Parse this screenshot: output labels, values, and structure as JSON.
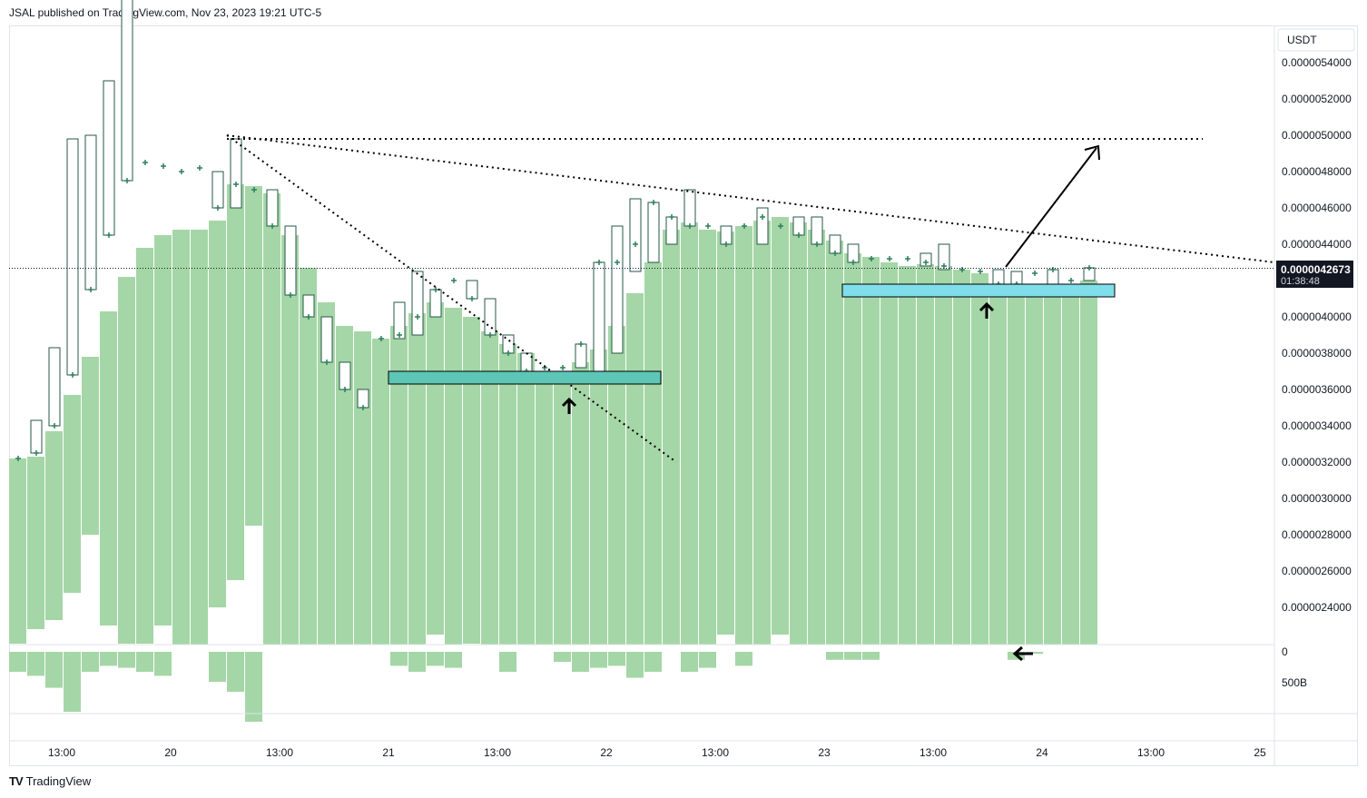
{
  "header": {
    "text": "JSAL published on TradingView.com, Nov 23, 2023 19:21 UTC-5"
  },
  "footer": {
    "brand": "TradingView",
    "logo": "TV"
  },
  "price_axis": {
    "currency": "USDT",
    "ticks": [
      "0.0000054000",
      "0.0000052000",
      "0.0000050000",
      "0.0000048000",
      "0.0000046000",
      "0.0000044000",
      "0.0000040000",
      "0.0000038000",
      "0.0000036000",
      "0.0000034000",
      "0.0000032000",
      "0.0000030000",
      "0.0000028000",
      "0.0000026000",
      "0.0000024000"
    ],
    "last_price": "0.0000042673",
    "countdown": "01:38:48"
  },
  "volume_axis": {
    "ticks": [
      "0",
      "500B"
    ]
  },
  "time_axis": {
    "labels": [
      "13:00",
      "20",
      "13:00",
      "21",
      "13:00",
      "22",
      "13:00",
      "23",
      "13:00",
      "24",
      "13:00",
      "25"
    ]
  },
  "chart_data": {
    "type": "bar",
    "description_series": [
      {
        "name": "",
        "kind": "candlestick-hollow",
        "values": [
          [
            3.22,
            3.22,
            3.22,
            3.22
          ],
          [
            3.22,
            3.25,
            3.22,
            3.25
          ],
          [
            3.25,
            3.43,
            3.25,
            3.4
          ],
          [
            3.4,
            3.83,
            3.4,
            3.68
          ],
          [
            3.68,
            4.98,
            3.68,
            4.98
          ],
          [
            4.35,
            4.35,
            4.35,
            4.35
          ],
          [
            4.15,
            5.0,
            4.15,
            4.15
          ],
          [
            4.45,
            5.3,
            4.45,
            4.75
          ],
          [
            4.75,
            4.75,
            4.75,
            4.75
          ],
          [
            4.85,
            4.85,
            4.85,
            4.85
          ],
          [
            4.8,
            4.8,
            4.8,
            4.8
          ],
          [
            4.82,
            4.82,
            4.82,
            4.82
          ],
          [
            4.82,
            5.12,
            4.82,
            4.92
          ],
          [
            4.92,
            6.0,
            4.92,
            5.0
          ],
          [
            4.8,
            4.8,
            4.8,
            4.8
          ],
          [
            4.7,
            4.7,
            4.7,
            4.7
          ],
          [
            4.5,
            4.5,
            4.5,
            4.5
          ],
          [
            4.12,
            4.12,
            4.12,
            4.12
          ],
          [
            4.0,
            4.0,
            4.0,
            4.0
          ],
          [
            3.75,
            3.75,
            3.75,
            3.75
          ],
          [
            3.6,
            3.6,
            3.6,
            3.6
          ],
          [
            3.5,
            3.5,
            3.5,
            3.5
          ],
          [
            3.4,
            3.4,
            3.4,
            3.4
          ],
          [
            3.25,
            3.25,
            3.25,
            3.25
          ],
          [
            3.1,
            3.1,
            3.1,
            3.1
          ],
          [
            3.05,
            3.05,
            3.05,
            3.05
          ],
          [
            3.0,
            3.0,
            3.0,
            3.0
          ],
          [
            2.95,
            2.95,
            2.95,
            2.95
          ],
          [
            2.9,
            2.9,
            2.9,
            2.9
          ],
          [
            3.8,
            3.8,
            3.8,
            3.8
          ],
          [
            3.9,
            3.9,
            3.9,
            3.9
          ],
          [
            3.8,
            3.8,
            3.8,
            3.8
          ]
        ],
        "note": ""
      }
    ],
    "candles": {
      "open": [
        3.2,
        3.25,
        3.4,
        3.68,
        4.15,
        4.45,
        4.75,
        4.85,
        4.85,
        4.8,
        4.82,
        4.8,
        4.6,
        4.73,
        4.7,
        4.5,
        4.12,
        4.0,
        3.75,
        3.6,
        3.9,
        3.88,
        3.9,
        4.0,
        4.15,
        4.2,
        4.1,
        3.9,
        3.8,
        3.7,
        3.72,
        3.72,
        3.7,
        3.8,
        4.25,
        4.3,
        4.4,
        4.63,
        4.55,
        4.5,
        4.5,
        4.4,
        4.5,
        4.55,
        4.5,
        4.45,
        4.4,
        4.35,
        4.3,
        4.32,
        4.32,
        4.32,
        4.3,
        4.28,
        4.26,
        4.25,
        4.18,
        4.18,
        4.24,
        4.26
      ],
      "close": [
        3.22,
        3.25,
        3.4,
        3.68,
        4.15,
        4.45,
        4.75,
        4.85,
        4.83,
        4.8,
        4.82,
        4.6,
        4.73,
        4.7,
        4.5,
        4.12,
        4.0,
        3.75,
        3.6,
        3.5,
        3.88,
        3.9,
        4.0,
        4.15,
        4.2,
        4.1,
        3.9,
        3.8,
        3.7,
        3.72,
        3.72,
        3.85,
        4.3,
        4.3,
        4.4,
        4.63,
        4.55,
        4.5,
        4.5,
        4.4,
        4.5,
        4.55,
        4.5,
        4.45,
        4.4,
        4.35,
        4.3,
        4.32,
        4.32,
        4.32,
        4.3,
        4.28,
        4.26,
        4.25,
        4.18,
        4.18,
        4.24,
        4.26,
        4.2,
        4.27
      ],
      "high": [
        3.22,
        3.43,
        3.83,
        4.98,
        5.0,
        5.3,
        6.0,
        4.85,
        4.85,
        4.8,
        4.82,
        4.8,
        4.98,
        4.73,
        4.7,
        4.5,
        4.12,
        4.0,
        3.75,
        3.6,
        3.9,
        4.08,
        4.25,
        4.15,
        4.2,
        4.2,
        4.1,
        3.9,
        3.8,
        3.72,
        3.72,
        3.85,
        4.3,
        4.5,
        4.65,
        4.63,
        4.55,
        4.7,
        4.55,
        4.5,
        4.55,
        4.6,
        4.55,
        4.55,
        4.55,
        4.45,
        4.4,
        4.35,
        4.32,
        4.35,
        4.35,
        4.4,
        4.3,
        4.28,
        4.26,
        4.25,
        4.18,
        4.24,
        4.26,
        4.27
      ],
      "low": [
        3.2,
        3.25,
        3.4,
        3.68,
        4.15,
        4.45,
        4.75,
        4.85,
        4.83,
        4.8,
        4.82,
        4.6,
        4.6,
        4.7,
        4.5,
        4.12,
        4.0,
        3.75,
        3.6,
        3.5,
        3.88,
        3.88,
        3.9,
        4.0,
        4.15,
        4.1,
        3.9,
        3.8,
        3.7,
        3.7,
        3.72,
        3.72,
        3.7,
        3.8,
        4.25,
        4.3,
        4.4,
        4.5,
        4.5,
        4.4,
        4.5,
        4.4,
        4.5,
        4.45,
        4.4,
        4.35,
        4.3,
        4.3,
        4.3,
        4.3,
        4.28,
        4.26,
        4.25,
        4.25,
        4.18,
        4.18,
        4.18,
        4.18,
        4.2,
        4.2
      ]
    },
    "overlay": {
      "name": "",
      "kind": "background-columns",
      "top_values": [
        3.22,
        3.23,
        3.37,
        3.57,
        3.78,
        4.03,
        4.22,
        4.38,
        4.45,
        4.48,
        4.48,
        4.53,
        4.73,
        4.72,
        4.68,
        4.45,
        4.27,
        4.08,
        3.95,
        3.92,
        3.88,
        3.95,
        4.02,
        4.08,
        4.05,
        4.0,
        3.92,
        3.85,
        3.8,
        3.7,
        3.7,
        3.75,
        3.82,
        3.95,
        4.13,
        4.3,
        4.48,
        4.52,
        4.48,
        4.47,
        4.5,
        4.53,
        4.55,
        4.52,
        4.48,
        4.42,
        4.35,
        4.33,
        4.3,
        4.28,
        4.29,
        4.28,
        4.26,
        4.24,
        4.17,
        4.15,
        4.12,
        4.15,
        4.15,
        4.2
      ],
      "bottom_values": [
        2.2,
        2.28,
        2.33,
        2.48,
        2.8,
        2.3,
        2.2,
        2.2,
        2.3,
        2.0,
        2.0,
        2.4,
        2.55,
        2.85,
        2.0,
        2.0,
        2.0,
        2.0,
        2.0,
        2.0,
        2.0,
        2.0,
        2.18,
        2.25,
        2.1,
        2.2,
        2.0,
        2.0,
        2.0,
        2.0,
        2.13,
        2.0,
        2.0,
        2.15,
        2.18,
        2.05,
        2.0,
        2.08,
        2.0,
        2.25,
        2.0,
        2.0,
        2.25,
        2.0,
        2.0,
        2.05,
        2.0,
        2.05,
        2.0,
        2.0,
        2.05,
        2.05,
        2.05,
        2.0,
        2.0,
        2.0,
        2.0,
        2.0,
        2.0,
        2.03
      ]
    },
    "volume": [
      0.1,
      0.12,
      0.18,
      0.3,
      0.1,
      0.07,
      0.08,
      0.1,
      0.12,
      0,
      0,
      0.15,
      0.2,
      0.35,
      0,
      0,
      0,
      0,
      0,
      0,
      0,
      0.07,
      0.1,
      0.07,
      0.08,
      0,
      0,
      0.1,
      0,
      0,
      0.05,
      0.1,
      0.08,
      0.07,
      0.13,
      0.1,
      0,
      0.1,
      0.08,
      0,
      0.07,
      0,
      0,
      0,
      0,
      0.04,
      0.04,
      0.04,
      0,
      0,
      0,
      0,
      0,
      0,
      0,
      0.04,
      0.01,
      0,
      0,
      0
    ],
    "ylim": [
      2.2,
      5.6
    ],
    "price_scale_factor": "1e-6",
    "annotations": {
      "resistance_line_price": 4.98,
      "support_zone_1": [
        3.63,
        3.7
      ],
      "support_zone_2": [
        4.11,
        4.18
      ]
    },
    "title": "",
    "xlabel": "",
    "ylabel": "",
    "grid": false,
    "legend": "none"
  },
  "colors": {
    "column_fill": "#a5d6a7",
    "candle_stroke": "#26574a",
    "plus_marker": "#2e7d5b",
    "zone_fill": "#5ec6b6",
    "zone2_fill": "#80deea",
    "line": "#000000",
    "price_label_bg": "#131722"
  }
}
